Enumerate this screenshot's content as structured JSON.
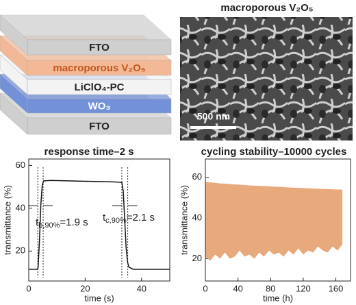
{
  "diagram": {
    "layers": [
      "FTO",
      "macroporous V₂O₅",
      "LiClO₄-PC",
      "WO₃",
      "FTO"
    ],
    "colors": [
      "#cfcfcf",
      "#f3b996",
      "#f3f3f3",
      "#7391d9",
      "#cfcfcf"
    ]
  },
  "image": {
    "title": "macroporous V₂O₅",
    "scale_bar": "500 nm"
  },
  "chart_data": [
    {
      "type": "line",
      "title": "response time–2 s",
      "x_label": "time (s)",
      "y_label": "transmittance (%)",
      "color": "#111111",
      "x": [
        0,
        3,
        3.3,
        3.8,
        4.3,
        4.8,
        5.3,
        8,
        20,
        30,
        33,
        33.5,
        34,
        34.5,
        35,
        35.5,
        37,
        50
      ],
      "y": [
        11.5,
        11.5,
        12,
        25,
        42,
        51,
        52.8,
        53,
        52.6,
        52.3,
        52.1,
        48,
        35,
        22,
        15,
        12.5,
        11.5,
        11.5
      ],
      "xlim": [
        0,
        50
      ],
      "ylim": [
        6,
        63
      ],
      "xticks": [
        0,
        20,
        40
      ],
      "yticks": [
        20,
        40,
        60
      ],
      "marker_lines": [
        3.2,
        5.1,
        33,
        35.1
      ],
      "annotations": [
        {
          "t": "t",
          "sub": "b,90%",
          "text": "=1.9 s"
        },
        {
          "t": "t",
          "sub": "c,90%",
          "text": "=2.1 s"
        }
      ]
    },
    {
      "type": "range_area",
      "title": "cycling stability–10000 cycles",
      "x_label": "time (h)",
      "y_label": "transmittance (%)",
      "color": "#e8a97c",
      "x": [
        0,
        6,
        12,
        18,
        24,
        30,
        36,
        42,
        48,
        54,
        60,
        66,
        72,
        78,
        84,
        90,
        96,
        102,
        108,
        114,
        120,
        126,
        132,
        138,
        144,
        150,
        156,
        162,
        168
      ],
      "upper": [
        57.8,
        57.5,
        57.3,
        57.0,
        56.9,
        56.7,
        56.5,
        56.4,
        56.2,
        56.0,
        55.9,
        55.8,
        55.7,
        55.6,
        55.4,
        55.3,
        55.2,
        55.0,
        54.9,
        54.8,
        54.7,
        54.6,
        54.5,
        54.4,
        54.3,
        54.2,
        54.1,
        54.0,
        54.0
      ],
      "lower": [
        21,
        19,
        22,
        20,
        23,
        20,
        21,
        24,
        21,
        22,
        20,
        23,
        21,
        24,
        22,
        23,
        21,
        24,
        22,
        25,
        22,
        24,
        23,
        26,
        24,
        23,
        26,
        24,
        27
      ],
      "xlim": [
        0,
        178
      ],
      "ylim": [
        9,
        69
      ],
      "xticks": [
        0,
        40,
        80,
        120,
        160
      ],
      "yticks": [
        20,
        40,
        60
      ]
    }
  ]
}
